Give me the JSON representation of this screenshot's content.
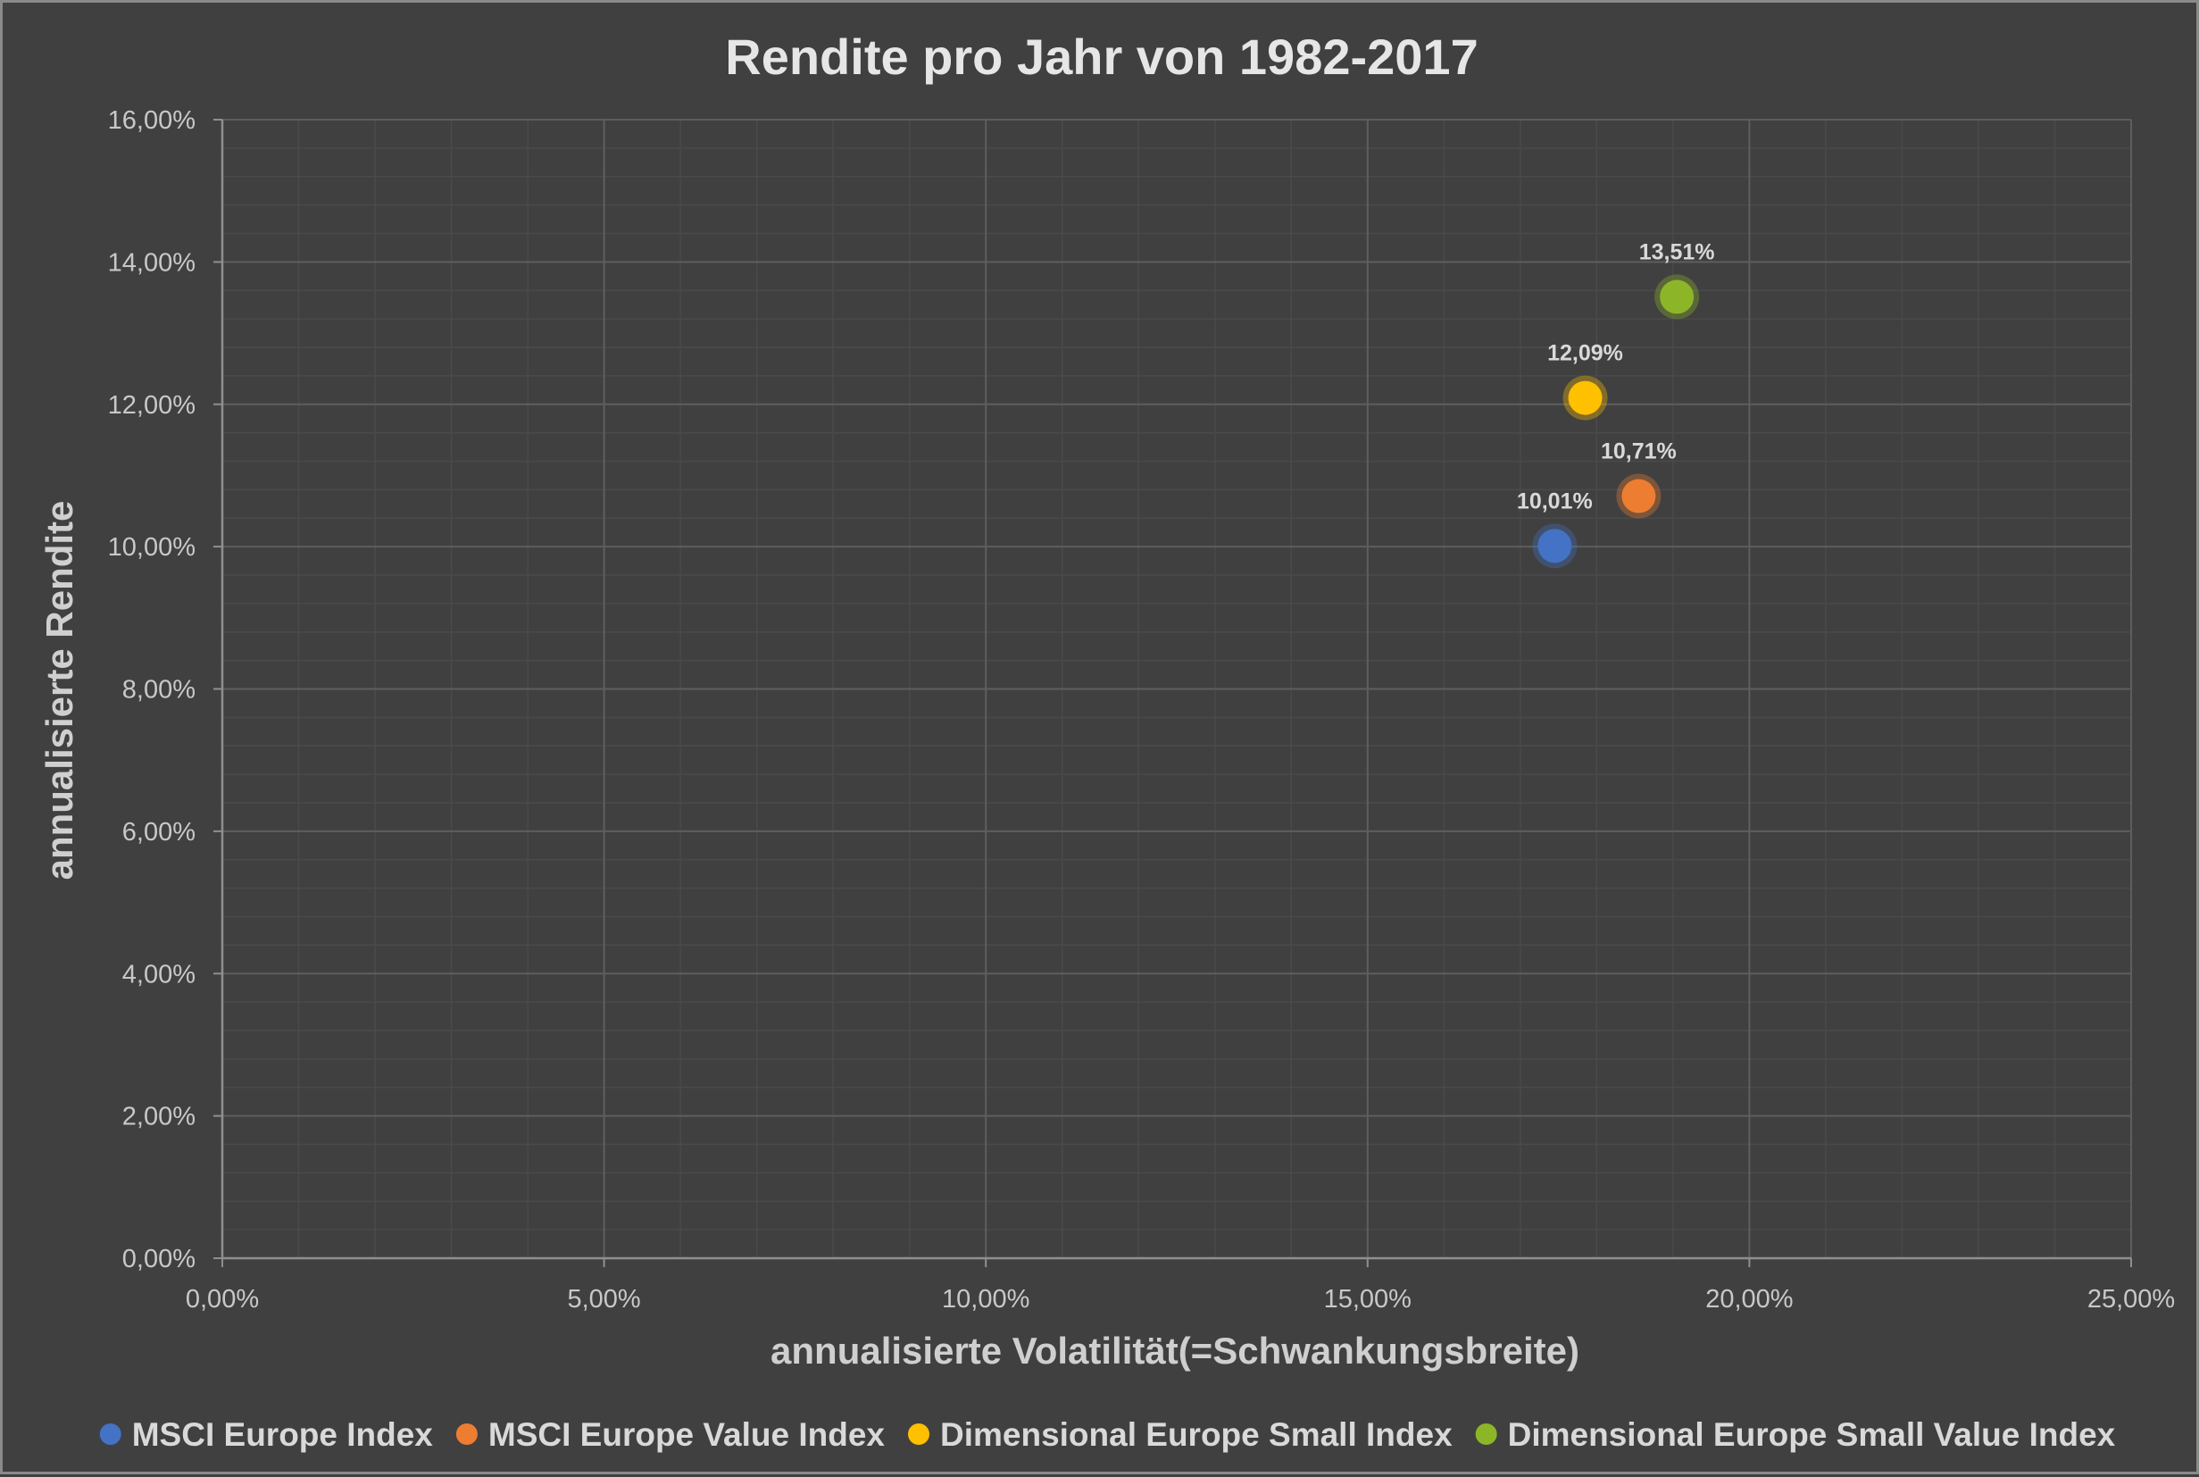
{
  "chart_data": {
    "type": "scatter",
    "title": "Rendite pro Jahr von 1982-2017",
    "xlabel": "annualisierte Volatilität(=Schwankungsbreite)",
    "ylabel": "annualisierte Rendite",
    "xlim": [
      0,
      0.25
    ],
    "ylim": [
      0,
      0.16
    ],
    "x_ticks": [
      "0,00%",
      "5,00%",
      "10,00%",
      "15,00%",
      "20,00%",
      "25,00%"
    ],
    "y_ticks": [
      "0,00%",
      "2,00%",
      "4,00%",
      "6,00%",
      "8,00%",
      "10,00%",
      "12,00%",
      "14,00%",
      "16,00%"
    ],
    "grid": true,
    "legend_position": "bottom",
    "series": [
      {
        "name": "MSCI Europe Index",
        "color": "#4472C4",
        "x": 0.1745,
        "y": 0.1001,
        "label": "10,01%"
      },
      {
        "name": "MSCI Europe Value Index",
        "color": "#ED7D31",
        "x": 0.1855,
        "y": 0.1071,
        "label": "10,71%"
      },
      {
        "name": "Dimensional Europe Small Index",
        "color": "#FFC000",
        "x": 0.1785,
        "y": 0.1209,
        "label": "12,09%"
      },
      {
        "name": "Dimensional Europe Small Value Index",
        "color": "#8DB528",
        "x": 0.1905,
        "y": 0.1351,
        "label": "13,51%"
      }
    ]
  }
}
